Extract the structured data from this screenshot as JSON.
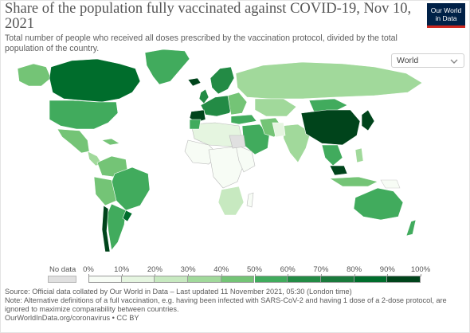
{
  "header": {
    "title": "Share of the population fully vaccinated against COVID-19, Nov 10, 2021",
    "subtitle": "Total number of people who received all doses prescribed by the vaccination protocol, divided by the total population of the country."
  },
  "logo": {
    "line1": "Our World",
    "line2": "in Data",
    "bg": "#002147",
    "accent": "#ce261e"
  },
  "region_select": {
    "value": "World",
    "icon": "chevron-down-icon"
  },
  "legend": {
    "no_data_label": "No data",
    "no_data_color": "#e0e0e0",
    "ticks": [
      "0%",
      "10%",
      "20%",
      "30%",
      "40%",
      "50%",
      "60%",
      "70%",
      "80%",
      "90%",
      "100%"
    ],
    "colors": [
      "#f7fcf5",
      "#e5f5e0",
      "#c7e9c0",
      "#a1d99b",
      "#74c476",
      "#41ab5d",
      "#238b45",
      "#1a7a3c",
      "#006d2c",
      "#00441b"
    ]
  },
  "footer": {
    "source": "Source: Official data collated by Our World in Data – Last updated 11 November 2021, 05:30 (London time)",
    "note": "Note: Alternative definitions of a full vaccination, e.g. having been infected with SARS-CoV-2 and having 1 dose of a 2-dose protocol, are ignored to maximize comparability between countries.",
    "link": "OurWorldInData.org/coronavirus • CC BY"
  }
}
